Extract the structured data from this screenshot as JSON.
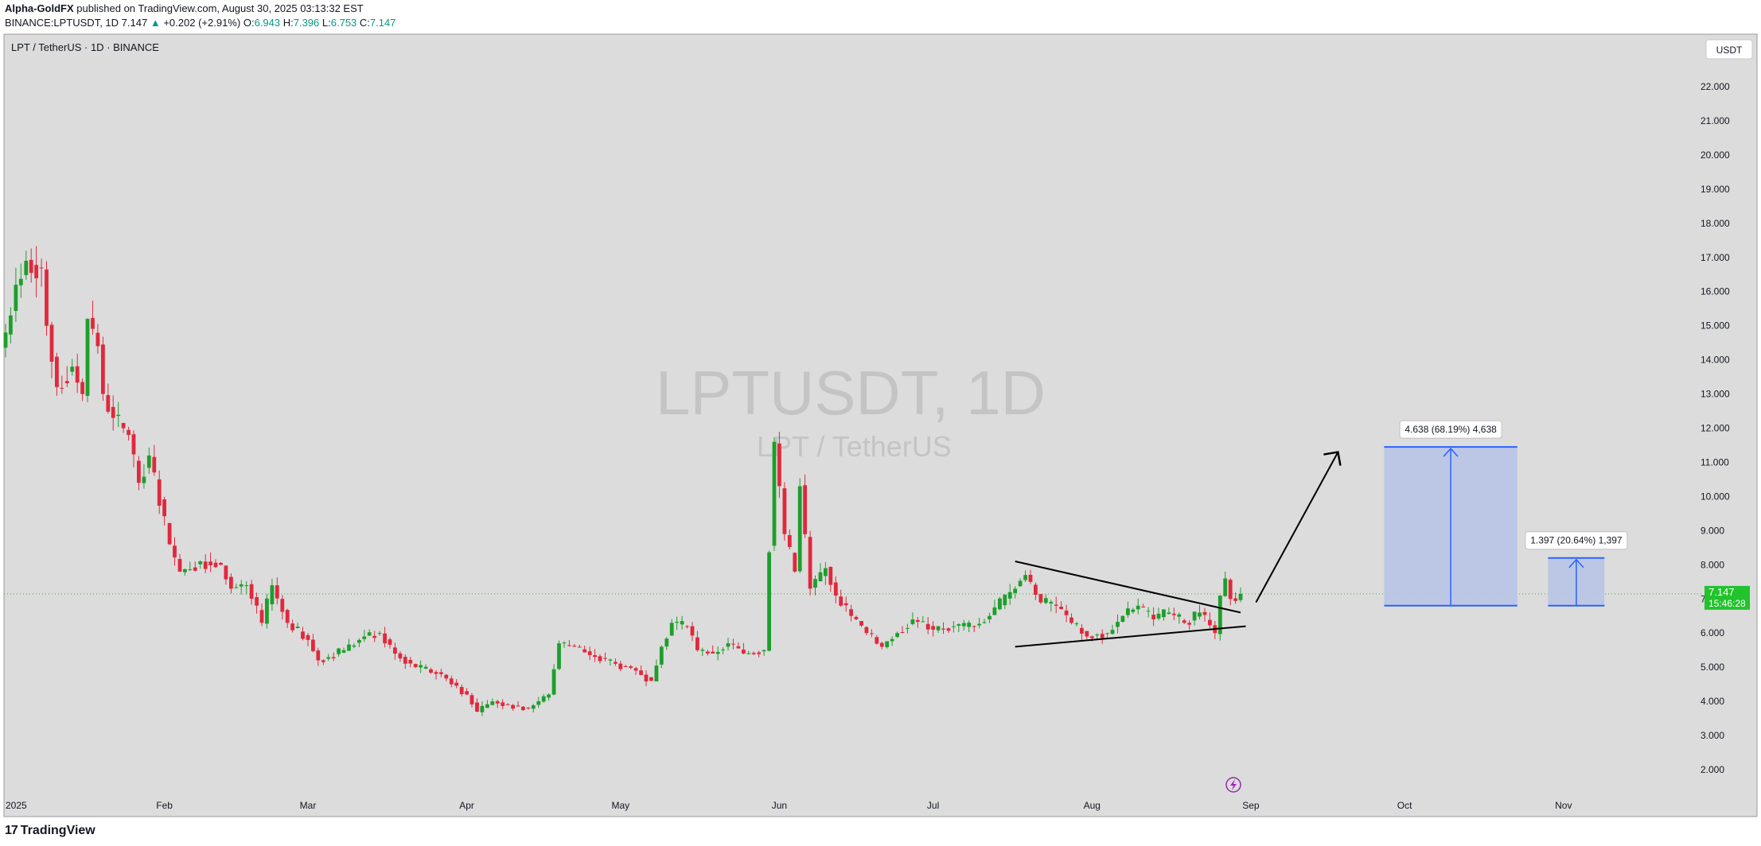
{
  "header": {
    "author": "Alpha-GoldFX",
    "published_text": "published on TradingView.com, August 30, 2025 03:13:32 EST",
    "symbol": "BINANCE:LPTUSDT, 1D",
    "last": "7.147",
    "change_arrow": "▲",
    "change": "+0.202 (+2.91%)",
    "o_label": "O:",
    "o_val": "6.943",
    "h_label": "H:",
    "h_val": "7.396",
    "l_label": "L:",
    "l_val": "6.753",
    "c_label": "C:",
    "c_val": "7.147"
  },
  "pane": {
    "title": "LPT / TetherUS · 1D · BINANCE",
    "currency_button": "USDT",
    "watermark_main": "LPTUSDT, 1D",
    "watermark_sub": "LPT / TetherUS",
    "price_label": "7.147",
    "countdown_label": "15:46:28",
    "measure_big": "4.638 (68.19%) 4,638",
    "measure_small": "1.397 (20.64%) 1,397",
    "footer_logo": "TradingView",
    "footer_logo_mark": "17"
  },
  "colors": {
    "up": "#1e9e2b",
    "down": "#e0293c",
    "pane_bg": "#dcdcdc",
    "measure_fill": "#b8c4e6",
    "measure_line": "#2962ff",
    "price_tag": "#22c32c"
  },
  "chart_data": {
    "type": "candlestick",
    "title": "LPT / TetherUS · 1D · BINANCE",
    "ylim": [
      1.6,
      23.2
    ],
    "y_ticks": [
      "2.000",
      "3.000",
      "4.000",
      "5.000",
      "6.000",
      "7.000",
      "8.000",
      "9.000",
      "10.000",
      "11.000",
      "12.000",
      "13.000",
      "14.000",
      "15.000",
      "16.000",
      "17.000",
      "18.000",
      "19.000",
      "20.000",
      "21.000",
      "22.000"
    ],
    "x_ticks": [
      "2025",
      "Feb",
      "Mar",
      "Apr",
      "May",
      "Jun",
      "Jul",
      "Aug",
      "Sep",
      "Oct",
      "Nov"
    ],
    "x_tick_dates": [
      "2025-01-01",
      "2025-02-01",
      "2025-03-01",
      "2025-04-01",
      "2025-05-01",
      "2025-06-01",
      "2025-07-01",
      "2025-08-01",
      "2025-09-01",
      "2025-10-01",
      "2025-11-01"
    ],
    "last_price": 7.147,
    "anchors": [
      [
        "2025-01-01",
        14.8
      ],
      [
        "2025-01-03",
        16.2
      ],
      [
        "2025-01-05",
        16.9
      ],
      [
        "2025-01-08",
        16.7
      ],
      [
        "2025-01-09",
        15.0
      ],
      [
        "2025-01-11",
        13.2
      ],
      [
        "2025-01-14",
        13.8
      ],
      [
        "2025-01-16",
        13.0
      ],
      [
        "2025-01-17",
        15.2
      ],
      [
        "2025-01-19",
        14.4
      ],
      [
        "2025-01-20",
        13.0
      ],
      [
        "2025-01-22",
        12.3
      ],
      [
        "2025-01-25",
        11.8
      ],
      [
        "2025-01-27",
        10.4
      ],
      [
        "2025-01-29",
        11.2
      ],
      [
        "2025-02-02",
        8.6
      ],
      [
        "2025-02-04",
        7.8
      ],
      [
        "2025-02-08",
        8.1
      ],
      [
        "2025-02-12",
        8.0
      ],
      [
        "2025-02-14",
        7.3
      ],
      [
        "2025-02-17",
        7.4
      ],
      [
        "2025-02-20",
        6.3
      ],
      [
        "2025-02-22",
        7.4
      ],
      [
        "2025-02-25",
        6.3
      ],
      [
        "2025-03-01",
        5.8
      ],
      [
        "2025-03-03",
        5.2
      ],
      [
        "2025-03-08",
        5.5
      ],
      [
        "2025-03-12",
        5.9
      ],
      [
        "2025-03-15",
        6.0
      ],
      [
        "2025-03-18",
        5.4
      ],
      [
        "2025-03-22",
        5.0
      ],
      [
        "2025-03-27",
        4.8
      ],
      [
        "2025-04-01",
        4.2
      ],
      [
        "2025-04-03",
        3.7
      ],
      [
        "2025-04-06",
        4.0
      ],
      [
        "2025-04-09",
        3.9
      ],
      [
        "2025-04-13",
        3.8
      ],
      [
        "2025-04-17",
        4.2
      ],
      [
        "2025-04-19",
        5.7
      ],
      [
        "2025-04-22",
        5.6
      ],
      [
        "2025-04-26",
        5.3
      ],
      [
        "2025-04-30",
        5.1
      ],
      [
        "2025-05-04",
        4.9
      ],
      [
        "2025-05-07",
        4.6
      ],
      [
        "2025-05-09",
        5.6
      ],
      [
        "2025-05-11",
        6.3
      ],
      [
        "2025-05-14",
        6.2
      ],
      [
        "2025-05-16",
        5.5
      ],
      [
        "2025-05-19",
        5.4
      ],
      [
        "2025-05-22",
        5.7
      ],
      [
        "2025-05-25",
        5.4
      ],
      [
        "2025-05-29",
        5.5
      ],
      [
        "2025-05-31",
        11.6
      ],
      [
        "2025-06-02",
        8.9
      ],
      [
        "2025-06-04",
        7.8
      ],
      [
        "2025-06-05",
        10.3
      ],
      [
        "2025-06-07",
        7.3
      ],
      [
        "2025-06-10",
        7.9
      ],
      [
        "2025-06-12",
        7.1
      ],
      [
        "2025-06-15",
        6.5
      ],
      [
        "2025-06-18",
        6.0
      ],
      [
        "2025-06-21",
        5.6
      ],
      [
        "2025-06-24",
        6.0
      ],
      [
        "2025-06-27",
        6.4
      ],
      [
        "2025-07-01",
        6.1
      ],
      [
        "2025-07-05",
        6.2
      ],
      [
        "2025-07-09",
        6.2
      ],
      [
        "2025-07-12",
        6.5
      ],
      [
        "2025-07-16",
        7.2
      ],
      [
        "2025-07-19",
        7.7
      ],
      [
        "2025-07-22",
        6.9
      ],
      [
        "2025-07-25",
        6.8
      ],
      [
        "2025-07-28",
        6.3
      ],
      [
        "2025-07-31",
        5.9
      ],
      [
        "2025-08-04",
        6.0
      ],
      [
        "2025-08-07",
        6.5
      ],
      [
        "2025-08-10",
        6.8
      ],
      [
        "2025-08-13",
        6.4
      ],
      [
        "2025-08-16",
        6.6
      ],
      [
        "2025-08-19",
        6.3
      ],
      [
        "2025-08-22",
        6.6
      ],
      [
        "2025-08-25",
        6.0
      ],
      [
        "2025-08-26",
        7.1
      ],
      [
        "2025-08-27",
        7.6
      ],
      [
        "2025-08-28",
        7.0
      ],
      [
        "2025-08-29",
        6.94
      ],
      [
        "2025-08-30",
        7.147
      ]
    ],
    "annotations": {
      "triangle_upper": [
        [
          "2025-07-17",
          8.1
        ],
        [
          "2025-08-30",
          6.6
        ]
      ],
      "triangle_lower": [
        [
          "2025-07-17",
          5.6
        ],
        [
          "2025-08-31",
          6.2
        ]
      ],
      "arrow": [
        [
          "2025-09-02",
          6.9
        ],
        [
          "2025-09-18",
          11.3
        ]
      ],
      "measure_big": {
        "x0": "2025-09-27",
        "x1": "2025-10-23",
        "bottom": 6.8,
        "top": 11.45,
        "label": "4.638 (68.19%) 4,638"
      },
      "measure_small": {
        "x0": "2025-10-29",
        "x1": "2025-11-09",
        "bottom": 6.8,
        "top": 8.2,
        "label": "1.397 (20.64%) 1,397"
      }
    }
  }
}
